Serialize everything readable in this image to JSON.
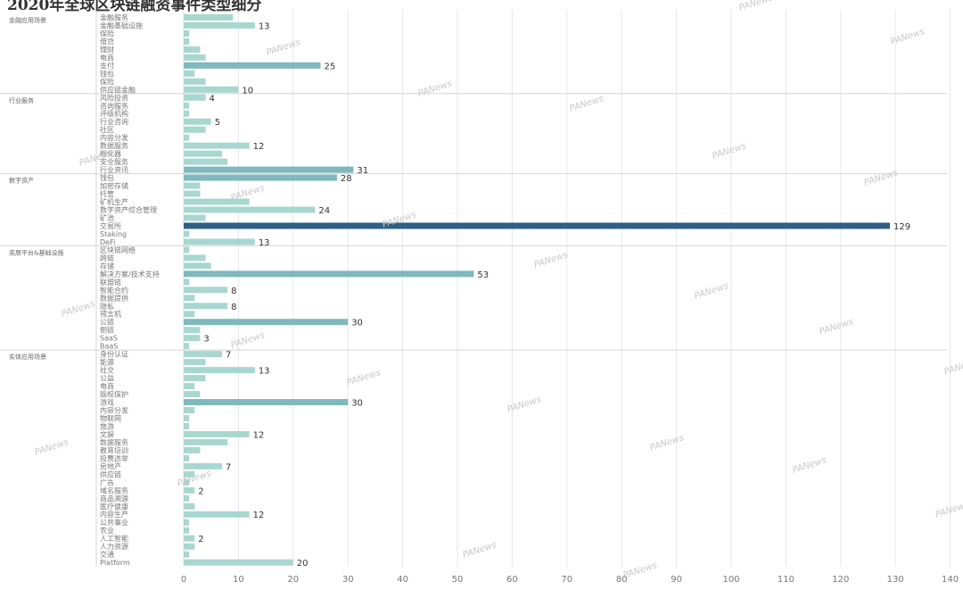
{
  "title": "2020年全球区块链融资事件类型细分",
  "watermark": "PANews",
  "colors": {
    "bar_light": "#a8d7d0",
    "bar_mid": "#7fb8bd",
    "bar_dark": "#2f5f85",
    "grid": "#e6e6ee",
    "separator": "#d4d4d4"
  },
  "chart_data": {
    "type": "bar",
    "orientation": "horizontal",
    "title": "2020年全球区块链融资事件类型细分",
    "xlim": [
      0,
      140
    ],
    "xticks": [
      0,
      10,
      20,
      30,
      40,
      50,
      60,
      70,
      80,
      90,
      100,
      110,
      120,
      130,
      140
    ],
    "grid": true,
    "legend": "none",
    "groups": [
      {
        "name": "金融应用场景",
        "categories": [
          {
            "label": "金融服务",
            "value": 9
          },
          {
            "label": "金融基础设施",
            "value": 13,
            "show": true
          },
          {
            "label": "保险",
            "value": 1
          },
          {
            "label": "借贷",
            "value": 1
          },
          {
            "label": "理财",
            "value": 3
          },
          {
            "label": "电商",
            "value": 4
          },
          {
            "label": "支付",
            "value": 25,
            "show": true
          },
          {
            "label": "钱包",
            "value": 2
          },
          {
            "label": "保险",
            "value": 4
          },
          {
            "label": "供应链金融",
            "value": 10,
            "show": true
          }
        ]
      },
      {
        "name": "行业服务",
        "categories": [
          {
            "label": "风险投资",
            "value": 4,
            "show": true
          },
          {
            "label": "咨询服务",
            "value": 1
          },
          {
            "label": "评级机构",
            "value": 1
          },
          {
            "label": "行业咨询",
            "value": 5,
            "show": true
          },
          {
            "label": "社区",
            "value": 4
          },
          {
            "label": "内容分发",
            "value": 1
          },
          {
            "label": "数据服务",
            "value": 12,
            "show": true
          },
          {
            "label": "孵化器",
            "value": 7
          },
          {
            "label": "安全服务",
            "value": 8
          },
          {
            "label": "行业资讯",
            "value": 31,
            "show": true
          }
        ]
      },
      {
        "name": "数字资产",
        "categories": [
          {
            "label": "钱包",
            "value": 28,
            "show": true
          },
          {
            "label": "加密存储",
            "value": 3
          },
          {
            "label": "托管",
            "value": 3
          },
          {
            "label": "矿机生产",
            "value": 12
          },
          {
            "label": "数字资产综合管理",
            "value": 24,
            "show": true
          },
          {
            "label": "矿池",
            "value": 4
          },
          {
            "label": "交易所",
            "value": 129,
            "show": true
          },
          {
            "label": "Staking",
            "value": 1
          },
          {
            "label": "DeFi",
            "value": 13,
            "show": true
          }
        ]
      },
      {
        "name": "底层平台&基础设施",
        "categories": [
          {
            "label": "区块链网络",
            "value": 1
          },
          {
            "label": "跨链",
            "value": 4
          },
          {
            "label": "存储",
            "value": 5
          },
          {
            "label": "解决方案/技术支持",
            "value": 53,
            "show": true
          },
          {
            "label": "联盟链",
            "value": 1
          },
          {
            "label": "智能合约",
            "value": 8,
            "show": true
          },
          {
            "label": "数据提供",
            "value": 2
          },
          {
            "label": "隐私",
            "value": 8,
            "show": true
          },
          {
            "label": "预言机",
            "value": 2
          },
          {
            "label": "公链",
            "value": 30,
            "show": true
          },
          {
            "label": "侧链",
            "value": 3
          },
          {
            "label": "SaaS",
            "value": 3,
            "show": true
          },
          {
            "label": "BaaS",
            "value": 1
          }
        ]
      },
      {
        "name": "实体应用场景",
        "categories": [
          {
            "label": "身份认证",
            "value": 7,
            "show": true
          },
          {
            "label": "能源",
            "value": 4
          },
          {
            "label": "社交",
            "value": 13,
            "show": true
          },
          {
            "label": "公益",
            "value": 4
          },
          {
            "label": "电商",
            "value": 2
          },
          {
            "label": "版权保护",
            "value": 3
          },
          {
            "label": "游戏",
            "value": 30,
            "show": true
          },
          {
            "label": "内容分发",
            "value": 2
          },
          {
            "label": "物联网",
            "value": 1
          },
          {
            "label": "旅游",
            "value": 1
          },
          {
            "label": "文娱",
            "value": 12,
            "show": true
          },
          {
            "label": "数据服务",
            "value": 8
          },
          {
            "label": "教育培训",
            "value": 3
          },
          {
            "label": "投票选举",
            "value": 1
          },
          {
            "label": "房地产",
            "value": 7,
            "show": true
          },
          {
            "label": "供应链",
            "value": 2
          },
          {
            "label": "广告",
            "value": 1
          },
          {
            "label": "域名服务",
            "value": 2,
            "show": true
          },
          {
            "label": "商品溯源",
            "value": 1
          },
          {
            "label": "医疗健康",
            "value": 2
          },
          {
            "label": "内容生产",
            "value": 12,
            "show": true
          },
          {
            "label": "公共事业",
            "value": 1
          },
          {
            "label": "农业",
            "value": 1
          },
          {
            "label": "人工智能",
            "value": 2,
            "show": true
          },
          {
            "label": "人力资源",
            "value": 2
          },
          {
            "label": "交通",
            "value": 1
          },
          {
            "label": "Platform",
            "value": 20,
            "show": true
          }
        ]
      }
    ]
  }
}
